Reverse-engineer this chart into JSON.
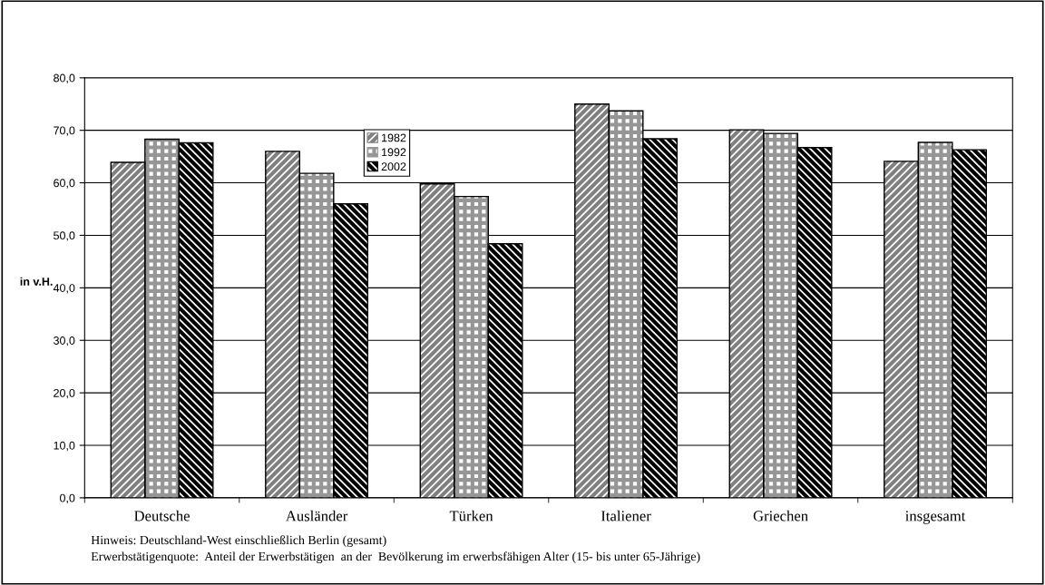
{
  "chart_data": {
    "type": "bar",
    "categories": [
      "Deutsche",
      "Ausländer",
      "Türken",
      "Italiener",
      "Griechen",
      "insgesamt"
    ],
    "series": [
      {
        "name": "1982",
        "color": "#808080",
        "values": [
          63.9,
          66.0,
          59.8,
          75.0,
          70.1,
          64.1
        ]
      },
      {
        "name": "1992",
        "color": "#969696",
        "values": [
          68.3,
          61.8,
          57.4,
          73.7,
          69.4,
          67.7
        ]
      },
      {
        "name": "2002",
        "color": "#000000",
        "values": [
          67.6,
          56.0,
          48.4,
          68.4,
          66.7,
          66.3
        ]
      }
    ],
    "ylabel": "in v.H.",
    "ylim": [
      0,
      80
    ],
    "yticks": [
      {
        "value": 0,
        "label": "0,0"
      },
      {
        "value": 10,
        "label": "10,0"
      },
      {
        "value": 20,
        "label": "20,0"
      },
      {
        "value": 30,
        "label": "30,0"
      },
      {
        "value": 40,
        "label": "40,0"
      },
      {
        "value": 50,
        "label": "50,0"
      },
      {
        "value": 60,
        "label": "60,0"
      },
      {
        "value": 70,
        "label": "70,0"
      },
      {
        "value": 80,
        "label": "80,0"
      }
    ],
    "grid": "y",
    "legend": "top",
    "annotations": [
      "Hinweis: Deutschland-West einschließlich Berlin (gesamt)",
      "Erwerbstätigenquote:  Anteil der Erwerbstätigen  an der  Bevölkerung im erwerbsfähigen Alter (15- bis unter 65-Jährige)"
    ]
  }
}
